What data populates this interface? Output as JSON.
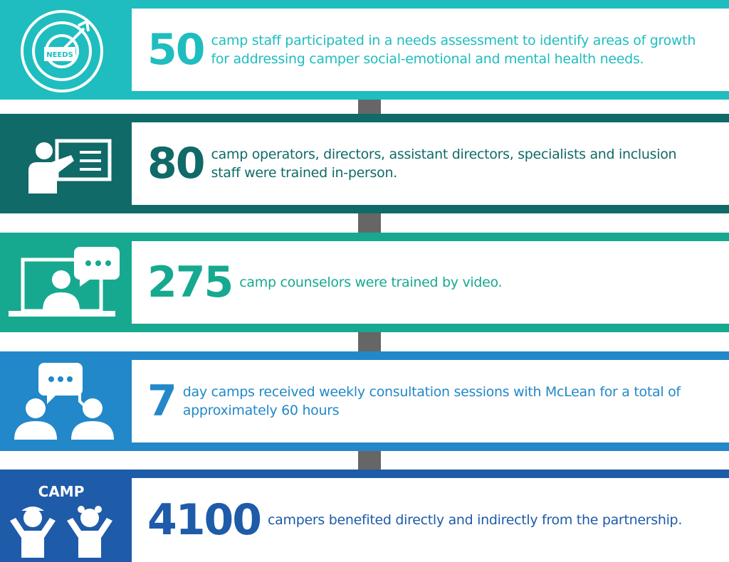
{
  "items": [
    {
      "number": "50",
      "icon_label": "NEEDS",
      "color": "#1fbdbf",
      "lines": [
        "camp staff participated in a needs assessment to identify areas of growth",
        "for addressing camper social-emotional and mental health needs."
      ]
    },
    {
      "number": "80",
      "color": "#0f6a68",
      "lines": [
        "camp operators, directors, assistant directors, specialists and inclusion",
        "staff were trained in-person."
      ]
    },
    {
      "number": "275",
      "color": "#17a98f",
      "lines": [
        "camp counselors were trained by video."
      ]
    },
    {
      "number": "7",
      "color": "#2288c9",
      "lines": [
        "day camps received weekly consultation sessions with McLean for a total of",
        "approximately 60 hours"
      ]
    },
    {
      "number": "4100",
      "icon_label": "CAMP",
      "color": "#1e5ba9",
      "lines": [
        "campers benefited directly and indirectly from the partnership."
      ]
    }
  ]
}
